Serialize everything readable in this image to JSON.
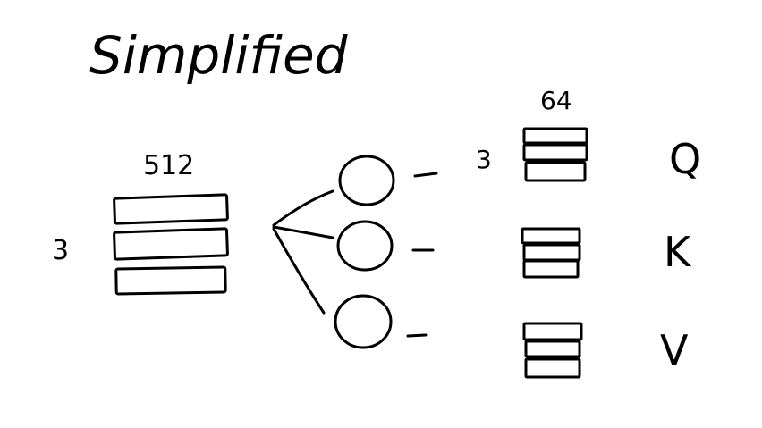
{
  "title": "Simplified",
  "input": {
    "rows_label": "3",
    "width_label": "512"
  },
  "projection": {
    "rows_label": "3",
    "width_label": "64",
    "outputs": [
      {
        "label": "Q"
      },
      {
        "label": "K"
      },
      {
        "label": "V"
      }
    ]
  },
  "colors": {
    "ink": "#000000",
    "background": "#ffffff"
  }
}
